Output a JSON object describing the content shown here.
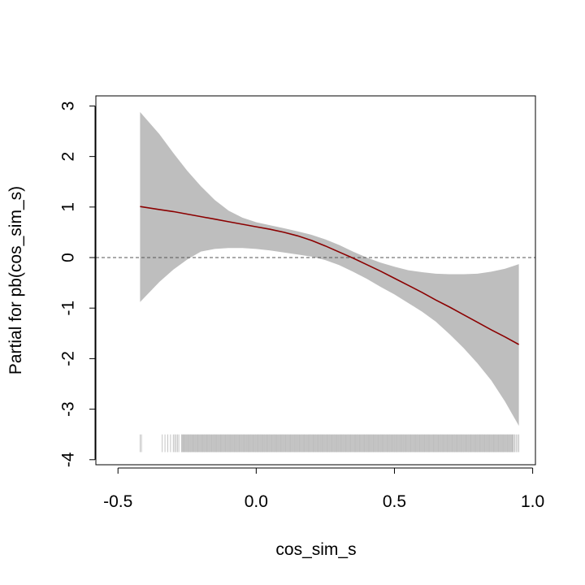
{
  "chart_data": {
    "type": "line",
    "xlabel": "cos_sim_s",
    "ylabel": "Partial for pb(cos_sim_s)",
    "xlim": [
      -0.58,
      1.01
    ],
    "ylim": [
      -4.1,
      3.2
    ],
    "x_ticks": [
      -0.5,
      0.0,
      0.5,
      1.0
    ],
    "x_tick_labels": [
      "-0.5",
      "0.0",
      "0.5",
      "1.0"
    ],
    "y_ticks": [
      -4,
      -3,
      -2,
      -1,
      0,
      1,
      2,
      3
    ],
    "y_tick_labels": [
      "-4",
      "-3",
      "-2",
      "-1",
      "0",
      "1",
      "2",
      "3"
    ],
    "reference_line": {
      "y": 0,
      "style": "dashed",
      "color": "#555555"
    },
    "colors": {
      "fit": "#8b0000",
      "band": "#bebebe",
      "rug": "#bebebe"
    },
    "series": [
      {
        "x": [
          -0.42,
          -0.35,
          -0.3,
          -0.25,
          -0.2,
          -0.15,
          -0.1,
          -0.05,
          0.0,
          0.05,
          0.1,
          0.15,
          0.2,
          0.25,
          0.3,
          0.35,
          0.4,
          0.45,
          0.5,
          0.55,
          0.6,
          0.65,
          0.7,
          0.75,
          0.8,
          0.85,
          0.9,
          0.95
        ],
        "fit": [
          1.01,
          0.95,
          0.91,
          0.86,
          0.81,
          0.76,
          0.71,
          0.66,
          0.61,
          0.56,
          0.5,
          0.43,
          0.34,
          0.23,
          0.11,
          -0.01,
          -0.14,
          -0.27,
          -0.41,
          -0.55,
          -0.69,
          -0.84,
          -0.98,
          -1.13,
          -1.28,
          -1.43,
          -1.57,
          -1.72
        ],
        "upper": [
          2.88,
          2.44,
          2.07,
          1.72,
          1.41,
          1.14,
          0.93,
          0.79,
          0.7,
          0.64,
          0.58,
          0.52,
          0.45,
          0.36,
          0.25,
          0.12,
          0.0,
          -0.1,
          -0.18,
          -0.25,
          -0.29,
          -0.32,
          -0.33,
          -0.33,
          -0.32,
          -0.28,
          -0.22,
          -0.13
        ],
        "lower": [
          -0.88,
          -0.48,
          -0.24,
          -0.04,
          0.12,
          0.17,
          0.19,
          0.19,
          0.17,
          0.14,
          0.1,
          0.06,
          0.02,
          -0.05,
          -0.15,
          -0.28,
          -0.42,
          -0.58,
          -0.73,
          -0.9,
          -1.07,
          -1.27,
          -1.52,
          -1.79,
          -2.09,
          -2.43,
          -2.85,
          -3.33
        ]
      }
    ],
    "rug": {
      "range": [
        -0.42,
        0.95
      ],
      "y_range": [
        -3.85,
        -3.5
      ],
      "dense_from": -0.27,
      "sparse_points": [
        -0.42,
        -0.415,
        -0.34,
        -0.33,
        -0.32,
        -0.31,
        -0.3,
        -0.295,
        -0.29,
        -0.285,
        -0.28
      ],
      "tail_points": [
        0.93,
        0.935,
        0.94,
        0.945,
        0.95
      ]
    }
  }
}
